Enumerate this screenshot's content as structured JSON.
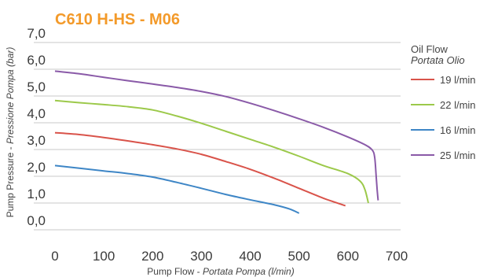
{
  "chart_data": {
    "type": "line",
    "title": "C610 H-HS  - M06",
    "title_color": "#f39a2a",
    "xlabel_main": "Pump Flow - ",
    "xlabel_italic": "Portata Pompa (l/min)",
    "ylabel_main": "Pump Pressure - ",
    "ylabel_italic": "Pressione Pompa (bar)",
    "xlim": [
      0,
      700
    ],
    "ylim": [
      0,
      7
    ],
    "x_ticks": [
      "0",
      "100",
      "200",
      "300",
      "400",
      "500",
      "600",
      "700"
    ],
    "y_ticks": [
      "0,0",
      "1,0",
      "2,0",
      "3,0",
      "4,0",
      "5,0",
      "6,0",
      "7,0"
    ],
    "grid": "horizontal",
    "legend_title_main": "Oil Flow",
    "legend_title_italic": "Portata Olio",
    "legend_position": "right",
    "series": [
      {
        "name": "19  l/min",
        "color": "#d9534a",
        "points": [
          [
            0,
            3.63
          ],
          [
            50,
            3.56
          ],
          [
            100,
            3.45
          ],
          [
            150,
            3.32
          ],
          [
            200,
            3.18
          ],
          [
            250,
            3.02
          ],
          [
            300,
            2.82
          ],
          [
            350,
            2.55
          ],
          [
            400,
            2.26
          ],
          [
            450,
            1.92
          ],
          [
            500,
            1.55
          ],
          [
            550,
            1.18
          ],
          [
            595,
            0.9
          ]
        ]
      },
      {
        "name": "22  l/min",
        "color": "#9cc94a",
        "points": [
          [
            0,
            4.83
          ],
          [
            50,
            4.75
          ],
          [
            100,
            4.68
          ],
          [
            150,
            4.6
          ],
          [
            200,
            4.48
          ],
          [
            250,
            4.25
          ],
          [
            300,
            3.98
          ],
          [
            350,
            3.68
          ],
          [
            400,
            3.38
          ],
          [
            450,
            3.08
          ],
          [
            500,
            2.75
          ],
          [
            550,
            2.4
          ],
          [
            600,
            2.1
          ],
          [
            625,
            1.82
          ],
          [
            635,
            1.5
          ],
          [
            642,
            1.0
          ]
        ]
      },
      {
        "name": "16  l/min",
        "color": "#3e86c6",
        "points": [
          [
            0,
            2.4
          ],
          [
            50,
            2.3
          ],
          [
            100,
            2.2
          ],
          [
            150,
            2.1
          ],
          [
            200,
            1.97
          ],
          [
            250,
            1.77
          ],
          [
            300,
            1.55
          ],
          [
            350,
            1.32
          ],
          [
            400,
            1.12
          ],
          [
            450,
            0.93
          ],
          [
            480,
            0.78
          ],
          [
            500,
            0.62
          ]
        ]
      },
      {
        "name": "25  l/min",
        "color": "#8a5aa8",
        "points": [
          [
            0,
            5.93
          ],
          [
            50,
            5.83
          ],
          [
            100,
            5.7
          ],
          [
            150,
            5.57
          ],
          [
            200,
            5.45
          ],
          [
            250,
            5.32
          ],
          [
            300,
            5.17
          ],
          [
            350,
            4.98
          ],
          [
            400,
            4.73
          ],
          [
            450,
            4.45
          ],
          [
            500,
            4.15
          ],
          [
            550,
            3.83
          ],
          [
            600,
            3.47
          ],
          [
            635,
            3.18
          ],
          [
            650,
            2.98
          ],
          [
            655,
            2.7
          ],
          [
            658,
            2.0
          ],
          [
            660,
            1.5
          ],
          [
            662,
            1.1
          ]
        ]
      }
    ]
  }
}
